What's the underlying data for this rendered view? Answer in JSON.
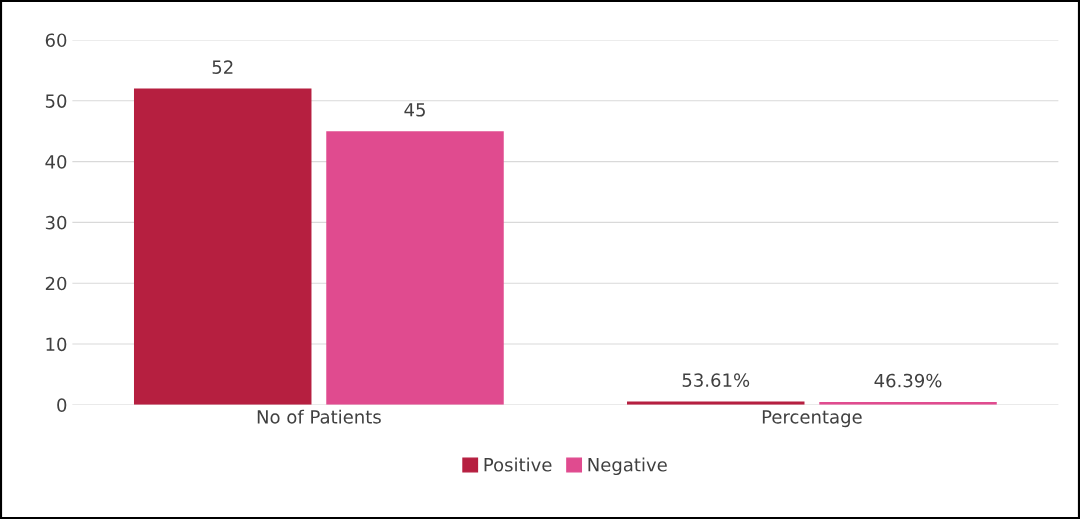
{
  "chart_data": {
    "type": "bar",
    "categories": [
      "No of Patients",
      "Percentage"
    ],
    "series": [
      {
        "name": "Positive",
        "color": "#b61f40",
        "values": [
          52,
          0.5361
        ],
        "value_labels": [
          "52",
          "53.61%"
        ]
      },
      {
        "name": "Negative",
        "color": "#e04b8f",
        "values": [
          45,
          0.4639
        ],
        "value_labels": [
          "45",
          "46.39%"
        ]
      }
    ],
    "ylim": [
      0,
      60
    ],
    "yticks": [
      0,
      10,
      20,
      30,
      40,
      50,
      60
    ],
    "grid": "y",
    "legend": "bottom"
  }
}
